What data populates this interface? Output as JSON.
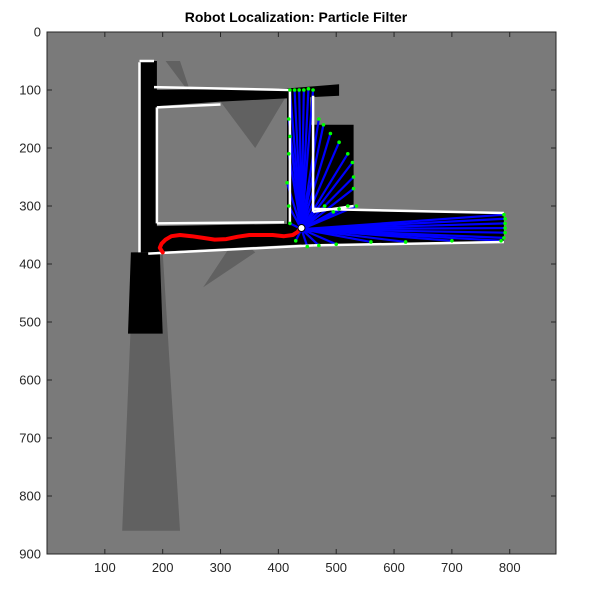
{
  "chart_data": {
    "type": "map",
    "title": "Robot Localization: Particle Filter",
    "xlabel": "",
    "ylabel": "",
    "xlim": [
      0,
      880
    ],
    "ylim": [
      900,
      0
    ],
    "y_axis_reversed": true,
    "grid": false,
    "x_ticks": [
      "100",
      "200",
      "300",
      "400",
      "500",
      "600",
      "700",
      "800"
    ],
    "y_ticks": [
      "0",
      "100",
      "200",
      "300",
      "400",
      "500",
      "600",
      "700",
      "800",
      "900"
    ],
    "colors": {
      "unknown": "#7a7a7a",
      "free_space": "#000000",
      "wall": "#ffffff",
      "laser_beams": "#0000ff",
      "laser_hits": "#00ff00",
      "trajectory": "#ff0000",
      "robot": "#ffffff"
    },
    "free_regions": [
      {
        "name": "left-vertical-corridor",
        "polygon": [
          [
            160,
            50
          ],
          [
            190,
            50
          ],
          [
            190,
            380
          ],
          [
            160,
            380
          ]
        ]
      },
      {
        "name": "left-lower-spur",
        "polygon": [
          [
            145,
            380
          ],
          [
            195,
            380
          ],
          [
            200,
            520
          ],
          [
            140,
            520
          ]
        ]
      },
      {
        "name": "top-corridor",
        "polygon": [
          [
            160,
            100
          ],
          [
            420,
            97
          ],
          [
            505,
            90
          ],
          [
            505,
            110
          ],
          [
            300,
            120
          ],
          [
            160,
            130
          ]
        ]
      },
      {
        "name": "bottom-corridor",
        "polygon": [
          [
            175,
            335
          ],
          [
            460,
            330
          ],
          [
            460,
            365
          ],
          [
            175,
            380
          ]
        ]
      },
      {
        "name": "right-vertical-corridor",
        "polygon": [
          [
            415,
            97
          ],
          [
            455,
            97
          ],
          [
            455,
            365
          ],
          [
            415,
            365
          ]
        ]
      },
      {
        "name": "right-horizontal-corridor",
        "polygon": [
          [
            440,
            305
          ],
          [
            790,
            312
          ],
          [
            790,
            360
          ],
          [
            440,
            368
          ]
        ]
      },
      {
        "name": "right-upper-room",
        "polygon": [
          [
            445,
            160
          ],
          [
            530,
            160
          ],
          [
            530,
            330
          ],
          [
            445,
            330
          ]
        ]
      }
    ],
    "walls": [
      [
        [
          160,
          50
        ],
        [
          185,
          50
        ]
      ],
      [
        [
          185,
          95
        ],
        [
          420,
          100
        ]
      ],
      [
        [
          190,
          130
        ],
        [
          300,
          125
        ]
      ],
      [
        [
          190,
          130
        ],
        [
          190,
          330
        ]
      ],
      [
        [
          190,
          330
        ],
        [
          410,
          328
        ]
      ],
      [
        [
          175,
          382
        ],
        [
          460,
          368
        ]
      ],
      [
        [
          160,
          52
        ],
        [
          160,
          380
        ]
      ],
      [
        [
          420,
          100
        ],
        [
          420,
          328
        ]
      ],
      [
        [
          460,
          110
        ],
        [
          460,
          310
        ]
      ],
      [
        [
          460,
          310
        ],
        [
          530,
          300
        ]
      ],
      [
        [
          460,
          305
        ],
        [
          790,
          312
        ]
      ],
      [
        [
          460,
          368
        ],
        [
          790,
          362
        ]
      ]
    ],
    "laser_origin": [
      440,
      340
    ],
    "laser_hits": [
      [
        420,
        100
      ],
      [
        428,
        100
      ],
      [
        436,
        100
      ],
      [
        444,
        100
      ],
      [
        452,
        98
      ],
      [
        460,
        100
      ],
      [
        470,
        150
      ],
      [
        478,
        160
      ],
      [
        490,
        175
      ],
      [
        505,
        190
      ],
      [
        520,
        210
      ],
      [
        528,
        225
      ],
      [
        530,
        250
      ],
      [
        530,
        270
      ],
      [
        535,
        300
      ],
      [
        520,
        300
      ],
      [
        505,
        305
      ],
      [
        495,
        310
      ],
      [
        480,
        300
      ],
      [
        790,
        315
      ],
      [
        792,
        322
      ],
      [
        792,
        330
      ],
      [
        792,
        338
      ],
      [
        792,
        346
      ],
      [
        790,
        355
      ],
      [
        785,
        360
      ],
      [
        700,
        360
      ],
      [
        620,
        362
      ],
      [
        560,
        362
      ],
      [
        500,
        366
      ],
      [
        470,
        368
      ],
      [
        450,
        370
      ],
      [
        430,
        360
      ],
      [
        420,
        330
      ],
      [
        418,
        300
      ],
      [
        415,
        260
      ],
      [
        418,
        210
      ],
      [
        420,
        180
      ],
      [
        418,
        150
      ]
    ],
    "trajectory": [
      [
        200,
        380
      ],
      [
        195,
        372
      ],
      [
        198,
        365
      ],
      [
        205,
        358
      ],
      [
        215,
        352
      ],
      [
        230,
        350
      ],
      [
        250,
        352
      ],
      [
        270,
        355
      ],
      [
        290,
        358
      ],
      [
        310,
        357
      ],
      [
        330,
        353
      ],
      [
        350,
        350
      ],
      [
        370,
        350
      ],
      [
        390,
        350
      ],
      [
        410,
        352
      ],
      [
        425,
        350
      ],
      [
        433,
        345
      ],
      [
        438,
        338
      ]
    ],
    "robot_pose": [
      440,
      338
    ]
  }
}
